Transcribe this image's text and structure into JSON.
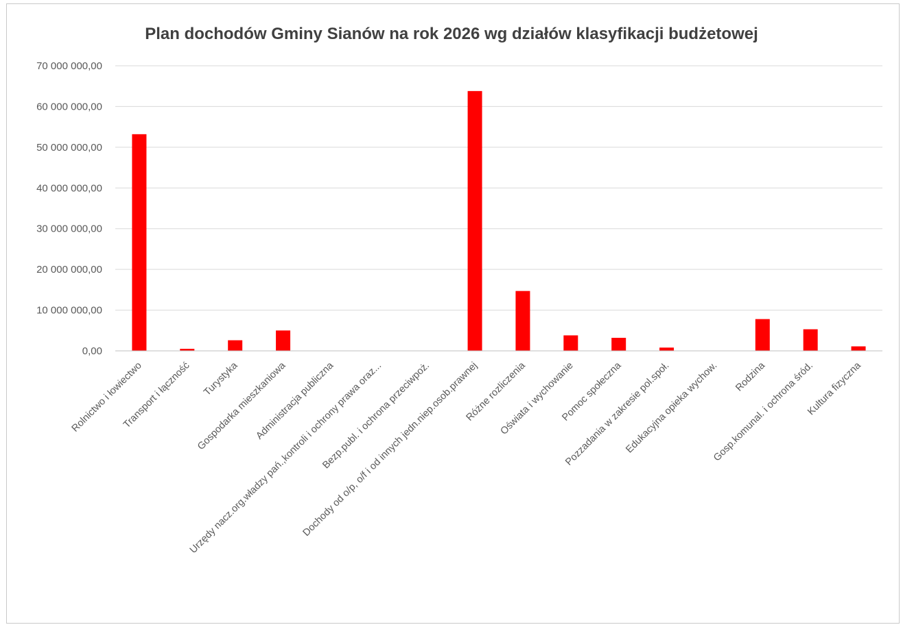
{
  "chart_data": {
    "type": "bar",
    "title": "Plan dochodów Gminy Sianów na rok 2026 wg działów klasyfikacji budżetowej",
    "xlabel": "",
    "ylabel": "",
    "ylim": [
      0,
      70000000
    ],
    "yticks": [
      0,
      10000000,
      20000000,
      30000000,
      40000000,
      50000000,
      60000000,
      70000000
    ],
    "ytick_labels": [
      "0,00",
      "10 000 000,00",
      "20 000 000,00",
      "30 000 000,00",
      "40 000 000,00",
      "50 000 000,00",
      "60 000 000,00",
      "70 000 000,00"
    ],
    "grid": true,
    "legend": "none",
    "bar_color": "#ff0000",
    "categories": [
      "Rolnictwo i łowiectwo",
      "Transport i łączność",
      "Turystyka",
      "Gospodarka mieszkaniowa",
      "Administracja publiczna",
      "Urzędy nacz.org.władzy pań.,kontroli i ochrony prawa oraz...",
      "Bezp.publ. i ochrona przeciwpoż.",
      "Dochody od o/p, o/f i od innych jedn.niep.osob.prawnej",
      "Różne rozliczenia",
      "Oświata i wychowanie",
      "Pomoc społeczna",
      "Pozzadania w zakresie pol.społ.",
      "Edukacyjna opieka wychow.",
      "Rodzina",
      "Gosp.komunal. i ochrona śród.",
      "Kultura fizyczna"
    ],
    "values": [
      53200000,
      500000,
      2600000,
      5000000,
      80000,
      5000,
      20000,
      63800000,
      14700000,
      3800000,
      3200000,
      800000,
      50000,
      7800000,
      5300000,
      1100000
    ]
  }
}
